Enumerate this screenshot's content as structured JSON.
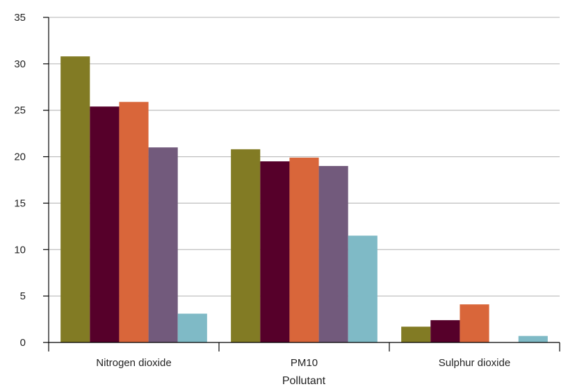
{
  "chart_data": {
    "type": "bar",
    "title": "",
    "xlabel": "Pollutant",
    "ylabel": "",
    "categories": [
      "Nitrogen dioxide",
      "PM10",
      "Sulphur dioxide"
    ],
    "ylim": [
      0,
      35
    ],
    "yticks": [
      0,
      5,
      10,
      15,
      20,
      25,
      30,
      35
    ],
    "grid": true,
    "legend": "none",
    "series": [
      {
        "color": "#827b24",
        "values": [
          30.8,
          20.8,
          1.7
        ]
      },
      {
        "color": "#56002a",
        "values": [
          25.4,
          19.5,
          2.4
        ]
      },
      {
        "color": "#d9663a",
        "values": [
          25.9,
          19.9,
          4.1
        ]
      },
      {
        "color": "#725a7c",
        "values": [
          21.0,
          19.0,
          0
        ]
      },
      {
        "color": "#7fbac6",
        "values": [
          3.1,
          11.5,
          0.7
        ]
      }
    ]
  }
}
